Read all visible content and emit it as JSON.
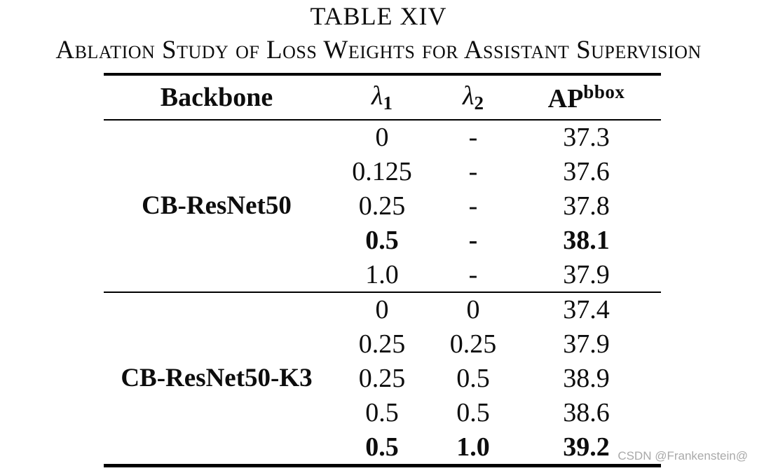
{
  "page": {
    "title": "TABLE XIV",
    "caption": "Ablation Study of Loss Weights for Assistant Supervision",
    "watermark": "CSDN @Frankenstein@"
  },
  "table": {
    "header": {
      "backbone": "Backbone",
      "lambda1": {
        "base": "λ",
        "sub": "1"
      },
      "lambda2": {
        "base": "λ",
        "sub": "2"
      },
      "ap": {
        "base": "AP",
        "sup": "bbox"
      }
    },
    "groups": [
      {
        "backbone": "CB-ResNet50",
        "rows": [
          {
            "lambda1": "0",
            "lambda2": "-",
            "ap": "37.3",
            "bold": false
          },
          {
            "lambda1": "0.125",
            "lambda2": "-",
            "ap": "37.6",
            "bold": false
          },
          {
            "lambda1": "0.25",
            "lambda2": "-",
            "ap": "37.8",
            "bold": false
          },
          {
            "lambda1": "0.5",
            "lambda2": "-",
            "ap": "38.1",
            "bold": true
          },
          {
            "lambda1": "1.0",
            "lambda2": "-",
            "ap": "37.9",
            "bold": false
          }
        ]
      },
      {
        "backbone": "CB-ResNet50-K3",
        "rows": [
          {
            "lambda1": "0",
            "lambda2": "0",
            "ap": "37.4",
            "bold": false
          },
          {
            "lambda1": "0.25",
            "lambda2": "0.25",
            "ap": "37.9",
            "bold": false
          },
          {
            "lambda1": "0.25",
            "lambda2": "0.5",
            "ap": "38.9",
            "bold": false
          },
          {
            "lambda1": "0.5",
            "lambda2": "0.5",
            "ap": "38.6",
            "bold": false
          },
          {
            "lambda1": "0.5",
            "lambda2": "1.0",
            "ap": "39.2",
            "bold": true
          }
        ]
      }
    ]
  },
  "colors": {
    "text": "#0d0d0d",
    "rule": "#000000",
    "watermark": "#a9a9a9"
  }
}
